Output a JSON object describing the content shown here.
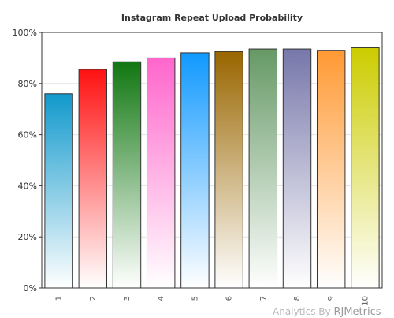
{
  "chart_data": {
    "type": "bar",
    "title": "Instagram Repeat Upload Probability",
    "xlabel": "",
    "ylabel": "",
    "categories": [
      "1",
      "2",
      "3",
      "4",
      "5",
      "6",
      "7",
      "8",
      "9",
      "10"
    ],
    "values": [
      76,
      85.5,
      88.5,
      90,
      92,
      92.5,
      93.5,
      93.5,
      93,
      94
    ],
    "value_unit": "%",
    "ylim": [
      0,
      100
    ],
    "yticks": [
      "0%",
      "20%",
      "40%",
      "60%",
      "80%",
      "100%"
    ],
    "grid": true,
    "legend": "none",
    "colors": [
      "#1199cc",
      "#ff1111",
      "#117711",
      "#ff66cc",
      "#1199ff",
      "#996600",
      "#669966",
      "#7777aa",
      "#ff9933",
      "#cccc00"
    ]
  },
  "watermark": {
    "prefix": "Analytics By",
    "brand": "RJMetrics"
  }
}
